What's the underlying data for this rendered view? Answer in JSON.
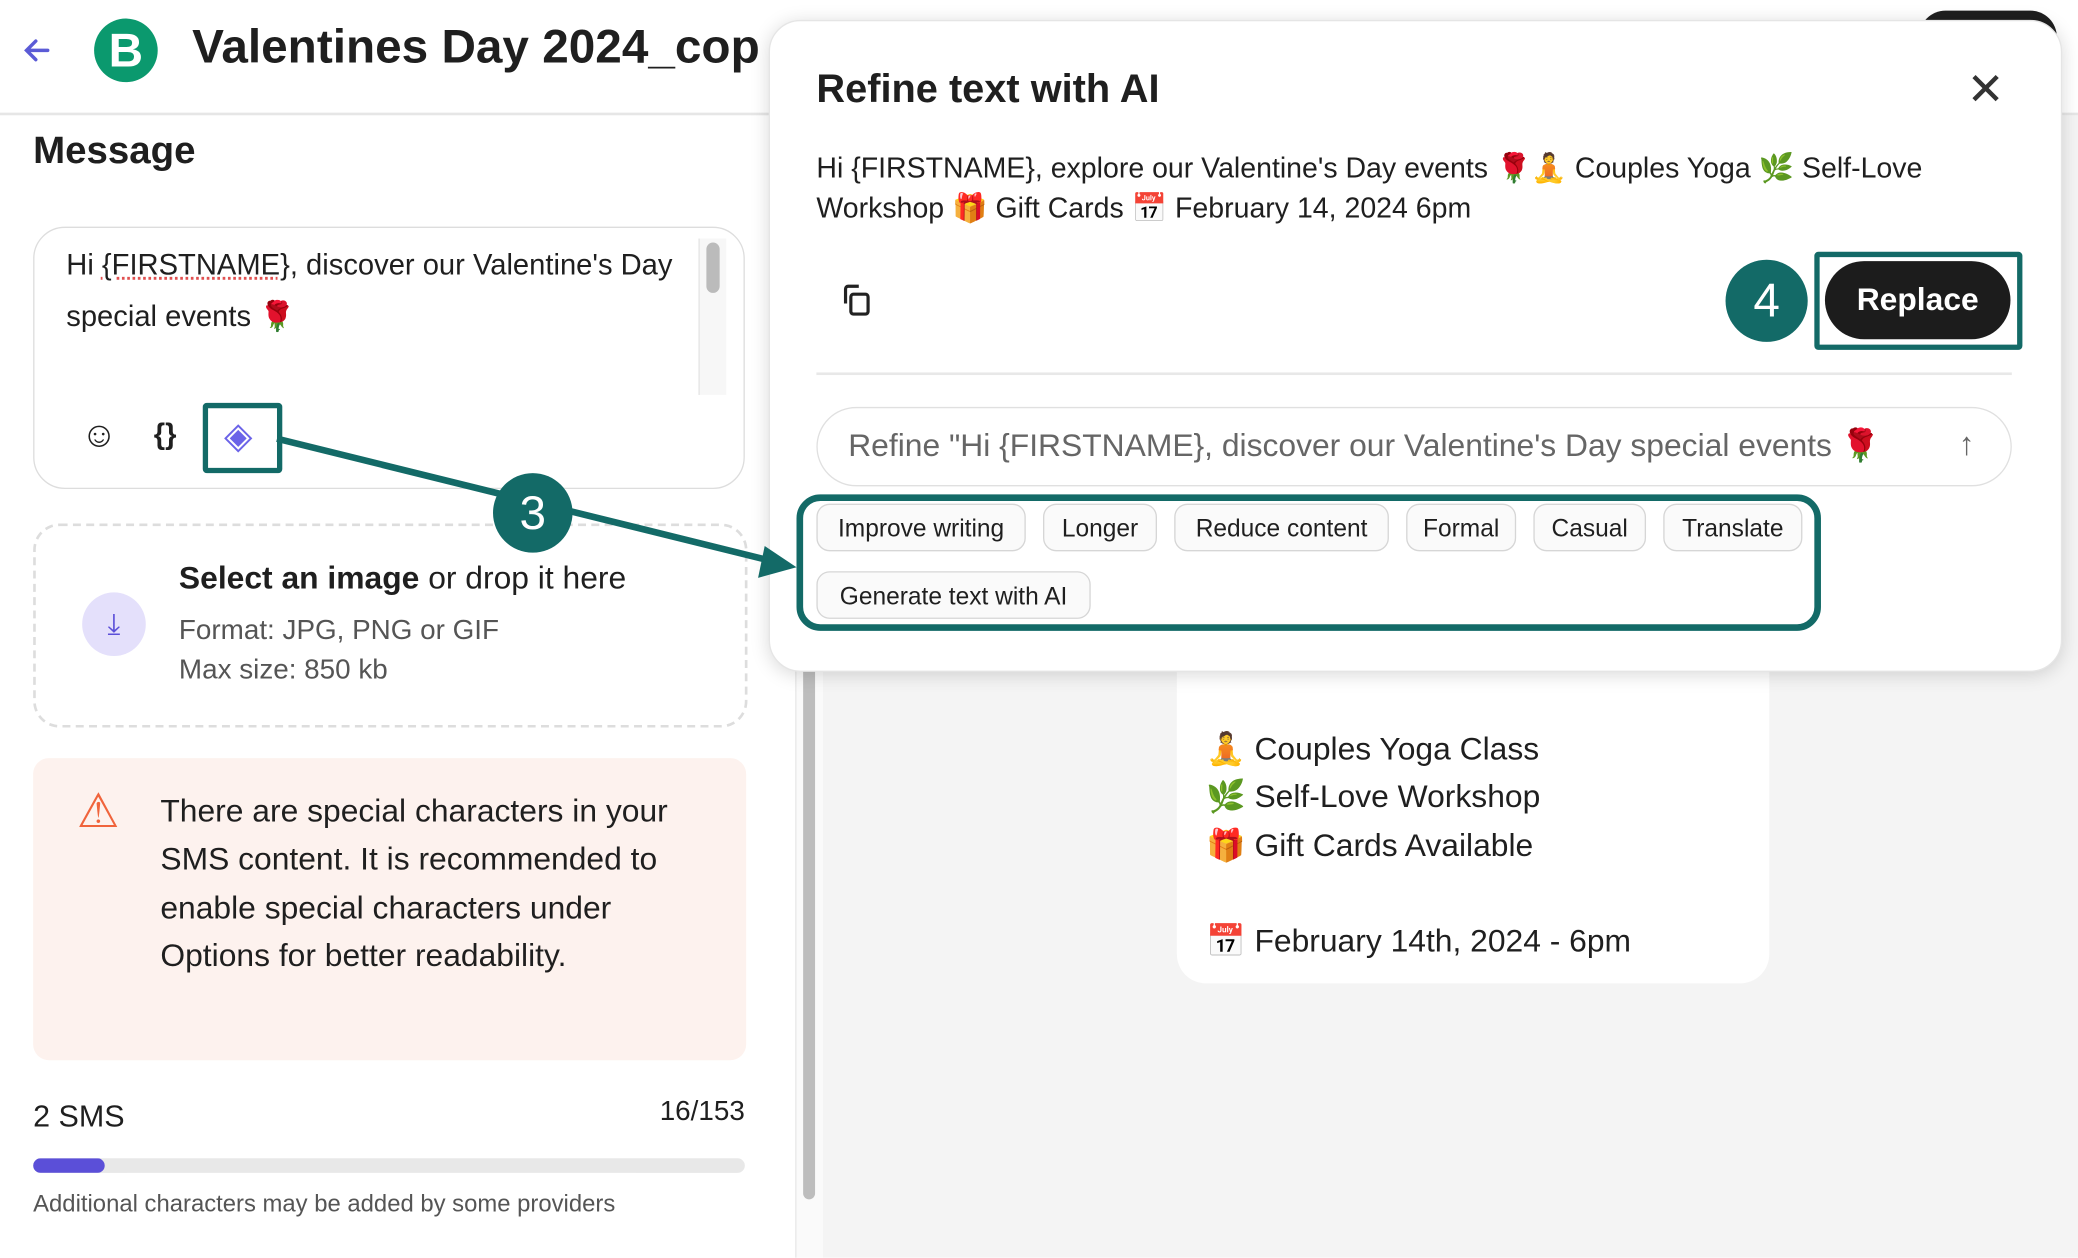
{
  "header": {
    "title": "Valentines Day 2024_cop",
    "logo_letter": "B",
    "back_icon": "arrow-left-icon"
  },
  "message": {
    "title": "Message",
    "text_prefix": "Hi ",
    "text_var": "{FIRSTNAME}",
    "text_rest": ", discover our Valentine's Day special events 🌹",
    "toolbar": {
      "emoji_icon": "☺",
      "variable_icon": "{}",
      "ai_icon": "◈"
    }
  },
  "upload": {
    "title_bold": "Select an image",
    "title_rest": " or drop it here",
    "format": "Format: JPG, PNG or GIF",
    "max_size": "Max size: 850 kb",
    "icon": "⤓"
  },
  "warning": {
    "icon": "⚠",
    "text": "There are special characters in your SMS content. It is recommended to enable special characters under Options for better readability."
  },
  "sms": {
    "count_label": "2 SMS",
    "chars": "16/153",
    "progress": 0.1,
    "note": "Additional characters may be added by some providers"
  },
  "preview": {
    "lines": [
      "🧘 Couples Yoga Class",
      "🌿 Self-Love Workshop",
      "🎁 Gift Cards Available",
      "",
      "📅 February 14th, 2024 - 6pm"
    ]
  },
  "modal": {
    "title": "Refine text with AI",
    "close": "✕",
    "result": "Hi {FIRSTNAME}, explore our Valentine's Day events 🌹🧘 Couples Yoga 🌿 Self-Love Workshop 🎁 Gift Cards 📅 February 14, 2024 6pm",
    "replace_label": "Replace",
    "refine_placeholder": "Refine  \"Hi {FIRSTNAME}, discover our Valentine's Day special events 🌹",
    "send_icon": "↑",
    "chips": [
      "Improve writing",
      "Longer",
      "Reduce content",
      "Formal",
      "Casual",
      "Translate",
      "Generate text with AI"
    ]
  },
  "annotations": {
    "step3": "3",
    "step4": "4",
    "color": "#136a67"
  },
  "colors": {
    "accent": "#5b4fd8",
    "brand": "#0b996e",
    "warning": "#f0643c"
  }
}
